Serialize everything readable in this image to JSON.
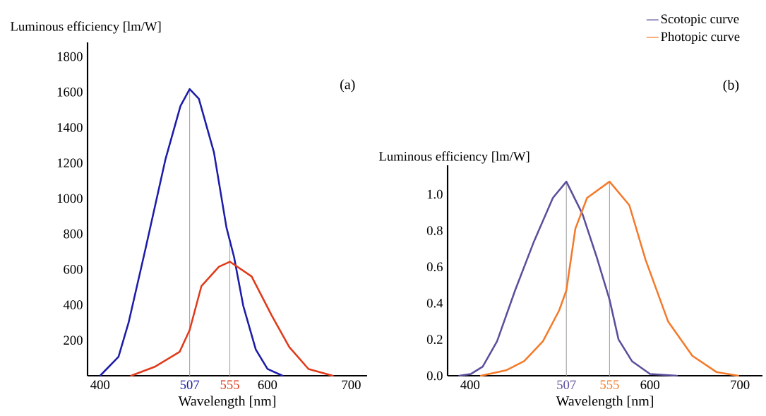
{
  "chart_data": [
    {
      "type": "line",
      "xlabel": "Wavelength [nm]",
      "ylabel": "Luminous efficiency [lm/W]",
      "annotations": [
        "(a)"
      ],
      "xlim": [
        385,
        719
      ],
      "ylim": [
        0,
        1880
      ],
      "xticks": [
        400,
        507,
        555,
        600,
        700
      ],
      "yticks": [
        200,
        400,
        600,
        800,
        1000,
        1200,
        1400,
        1600,
        1800
      ],
      "ref_lines": [
        {
          "axis": "x",
          "value": 507,
          "color": "#a0a0a0"
        },
        {
          "axis": "x",
          "value": 555,
          "color": "#a0a0a0"
        }
      ],
      "series": [
        {
          "color": "#1c1ca8",
          "x": [
            400,
            422,
            434,
            454,
            478,
            496,
            507,
            518,
            536,
            551,
            560,
            571,
            586,
            600,
            618
          ],
          "values": [
            0,
            107,
            299,
            711,
            1219,
            1521,
            1617,
            1562,
            1260,
            835,
            670,
            395,
            148,
            38,
            0
          ]
        },
        {
          "color": "#e03a1a",
          "x": [
            437,
            466,
            495,
            507,
            521,
            542,
            555,
            581,
            605,
            626,
            649,
            678
          ],
          "values": [
            0,
            52,
            135,
            258,
            505,
            615,
            643,
            560,
            340,
            162,
            38,
            0
          ]
        }
      ]
    },
    {
      "type": "line",
      "xlabel": "Wavelength [nm]",
      "ylabel": "Luminous efficiency [lm/W]",
      "annotations": [
        "(b)"
      ],
      "legend": "top right",
      "xlim": [
        375,
        725
      ],
      "ylim": [
        0,
        1.16
      ],
      "xticks": [
        400,
        507,
        555,
        600,
        700
      ],
      "yticks": [
        {
          "value": 0,
          "label": "0.0"
        },
        {
          "value": 0.2,
          "label": "0.2"
        },
        {
          "value": 0.4,
          "label": "0.4"
        },
        {
          "value": 0.6,
          "label": "0.6"
        },
        {
          "value": 0.8,
          "label": "0.8"
        },
        {
          "value": 1.0,
          "label": "1.0"
        }
      ],
      "ref_lines": [
        {
          "axis": "x",
          "value": 507,
          "color": "#a0a0a0"
        },
        {
          "axis": "x",
          "value": 555,
          "color": "#a0a0a0"
        }
      ],
      "series": [
        {
          "name": "Scotopic curve",
          "color": "#5a4f9c",
          "x": [
            388,
            401,
            414,
            430,
            450,
            471,
            492,
            507,
            525,
            541,
            555,
            565,
            580,
            600,
            630
          ],
          "values": [
            0,
            0.01,
            0.05,
            0.19,
            0.47,
            0.74,
            0.98,
            1.07,
            0.89,
            0.65,
            0.42,
            0.2,
            0.08,
            0.01,
            0
          ]
        },
        {
          "name": "Photopic curve",
          "color": "#f47a2a",
          "x": [
            412,
            440,
            460,
            481,
            499,
            507,
            517,
            530,
            555,
            577,
            595,
            620,
            647,
            674,
            698
          ],
          "values": [
            0,
            0.03,
            0.08,
            0.19,
            0.36,
            0.47,
            0.81,
            0.98,
            1.07,
            0.94,
            0.64,
            0.3,
            0.11,
            0.02,
            0
          ]
        }
      ]
    }
  ]
}
